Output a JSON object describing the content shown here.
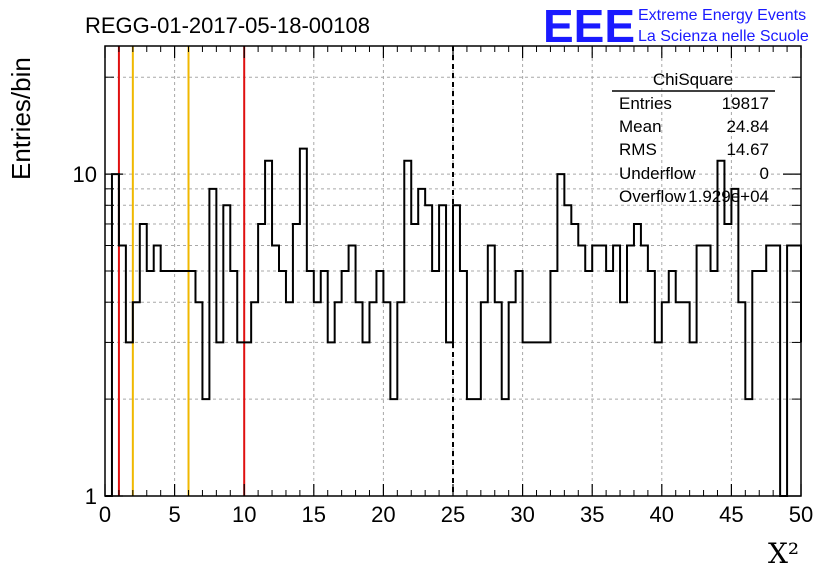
{
  "title": "REGG-01-2017-05-18-00108",
  "logo": {
    "mark": "EEE",
    "line1": "Extreme Energy Events",
    "line2": "La Scienza nelle Scuole"
  },
  "stats": {
    "header": "ChiSquare",
    "rows": [
      {
        "label": "Entries",
        "value": "19817"
      },
      {
        "label": "Mean",
        "value": "24.84"
      },
      {
        "label": "RMS",
        "value": "14.67"
      },
      {
        "label": "Underflow",
        "value": "0"
      },
      {
        "label": "Overflow",
        "value": "1.929e+04"
      }
    ]
  },
  "colors": {
    "red_line": "#e01010",
    "orange_line": "#f0b800",
    "dashed_line": "#000000",
    "logo": "#1a1aff"
  },
  "chart_data": {
    "type": "histogram",
    "xlabel": "X²",
    "ylabel": "Entries/bin",
    "xlim": [
      0,
      50
    ],
    "ylim": [
      1,
      25
    ],
    "yscale": "log",
    "grid": true,
    "bin_width": 0.5,
    "x_ticks": [
      "0",
      "5",
      "10",
      "15",
      "20",
      "25",
      "30",
      "35",
      "40",
      "45",
      "50"
    ],
    "y_ticks": [
      "1",
      "10"
    ],
    "values": [
      0,
      10,
      6,
      3,
      4,
      7,
      5,
      6,
      5,
      5,
      5,
      5,
      5,
      4,
      2,
      9,
      3,
      8,
      5,
      3,
      3,
      4,
      7,
      11,
      6,
      5,
      4,
      7,
      12,
      5,
      4,
      5,
      3,
      4,
      5,
      6,
      4,
      3,
      4,
      5,
      4,
      2,
      4,
      11,
      7,
      9,
      8,
      5,
      8,
      3,
      8,
      5,
      2,
      2,
      4,
      6,
      4,
      2,
      4,
      5,
      3,
      3,
      3,
      3,
      5,
      10,
      8,
      7,
      6,
      5,
      6,
      6,
      5,
      6,
      4,
      6,
      7,
      6,
      5,
      3,
      4,
      5,
      4,
      4,
      3,
      6,
      6,
      5,
      11,
      7,
      9,
      4,
      2,
      5,
      5,
      6,
      6,
      1,
      6,
      6,
      3
    ],
    "vertical_lines": [
      {
        "x": 1,
        "color": "red",
        "style": "solid"
      },
      {
        "x": 2,
        "color": "orange",
        "style": "solid"
      },
      {
        "x": 6,
        "color": "orange",
        "style": "solid"
      },
      {
        "x": 10,
        "color": "red",
        "style": "solid"
      },
      {
        "x": 25,
        "color": "black",
        "style": "dashed"
      }
    ]
  }
}
